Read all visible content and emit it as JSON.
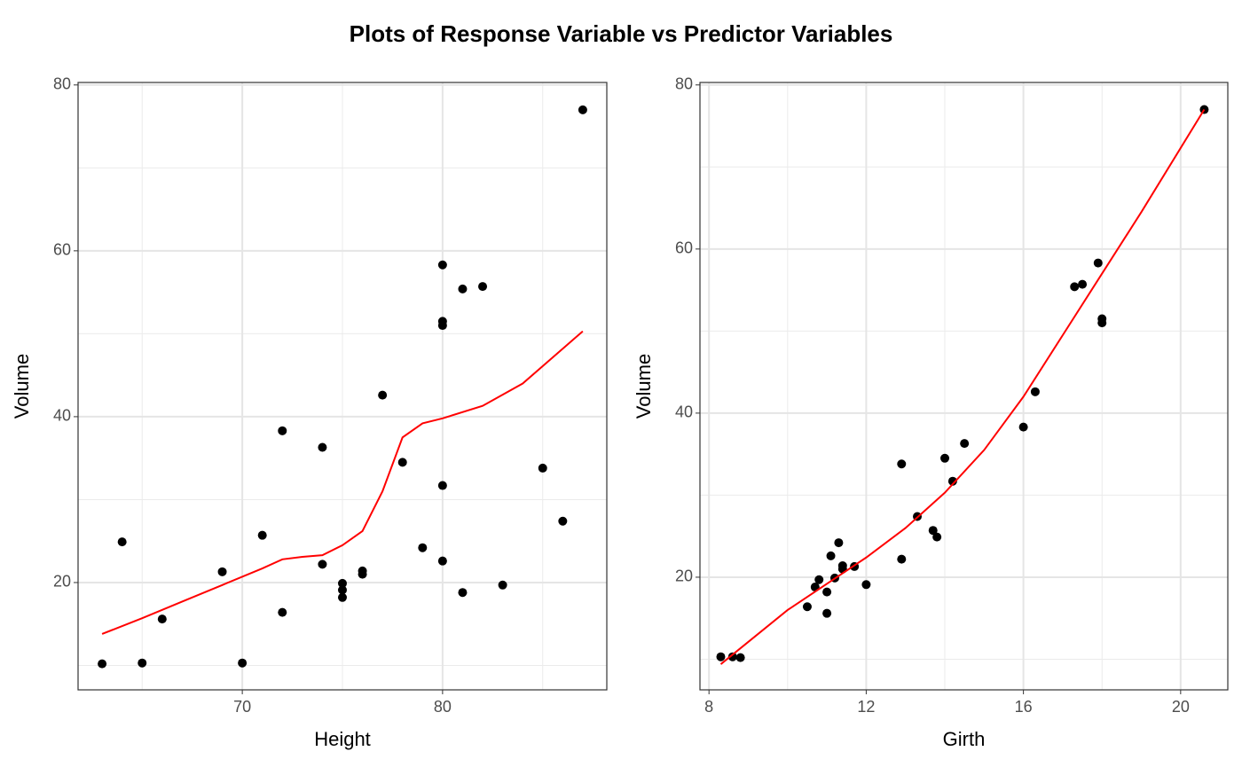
{
  "title": "Plots of Response Variable vs Predictor Variables",
  "chart_data": [
    {
      "type": "scatter",
      "xlabel": "Height",
      "ylabel": "Volume",
      "x": [
        70,
        65,
        63,
        72,
        81,
        83,
        66,
        75,
        80,
        75,
        79,
        76,
        76,
        69,
        75,
        74,
        85,
        86,
        71,
        64,
        78,
        80,
        74,
        72,
        77,
        81,
        82,
        80,
        80,
        80,
        87
      ],
      "values": [
        10.3,
        10.3,
        10.2,
        16.4,
        18.8,
        19.7,
        15.6,
        18.2,
        22.6,
        19.9,
        24.2,
        21.0,
        21.4,
        21.3,
        19.1,
        22.2,
        33.8,
        27.4,
        25.7,
        24.9,
        34.5,
        31.7,
        36.3,
        38.3,
        42.6,
        55.4,
        55.7,
        58.3,
        51.5,
        51.0,
        77.0
      ],
      "color": "#000000",
      "smooth": {
        "color": "#ff0000",
        "x": [
          63,
          65,
          67,
          69,
          71,
          72,
          73,
          74,
          75,
          76,
          77,
          78,
          79,
          80,
          82,
          84,
          86,
          87
        ],
        "values": [
          13.8,
          15.7,
          17.7,
          19.7,
          21.7,
          22.8,
          23.1,
          23.3,
          24.5,
          26.2,
          31,
          37.5,
          39.2,
          39.8,
          41.3,
          44,
          48.2,
          50.3
        ]
      },
      "xlim": [
        61.8,
        88.2
      ],
      "ylim": [
        7.06,
        80.3
      ],
      "xticks": [
        70,
        80
      ],
      "yticks": [
        20,
        40,
        60,
        80
      ],
      "minor_xticks": [
        65,
        75,
        85
      ],
      "minor_yticks": [
        10,
        30,
        50,
        70
      ],
      "grid": true
    },
    {
      "type": "scatter",
      "xlabel": "Girth",
      "ylabel": "Volume",
      "x": [
        8.3,
        8.6,
        8.8,
        10.5,
        10.7,
        10.8,
        11.0,
        11.0,
        11.1,
        11.2,
        11.3,
        11.4,
        11.4,
        11.7,
        12.0,
        12.9,
        12.9,
        13.3,
        13.7,
        13.8,
        14.0,
        14.2,
        14.5,
        16.0,
        16.3,
        17.3,
        17.5,
        17.9,
        18.0,
        18.0,
        20.6
      ],
      "values": [
        10.3,
        10.3,
        10.2,
        16.4,
        18.8,
        19.7,
        15.6,
        18.2,
        22.6,
        19.9,
        24.2,
        21.0,
        21.4,
        21.3,
        19.1,
        22.2,
        33.8,
        27.4,
        25.7,
        24.9,
        34.5,
        31.7,
        36.3,
        38.3,
        42.6,
        55.4,
        55.7,
        58.3,
        51.5,
        51.0,
        77.0
      ],
      "color": "#000000",
      "smooth": {
        "color": "#ff0000",
        "x": [
          8.3,
          10,
          12,
          13,
          14,
          15,
          16,
          17,
          18,
          19,
          20.6
        ],
        "values": [
          9.4,
          16,
          22.4,
          26,
          30.3,
          35.5,
          42,
          49.5,
          57,
          64.5,
          77
        ]
      },
      "xlim": [
        7.77,
        21.2
      ],
      "ylim": [
        6.27,
        80.3
      ],
      "xticks": [
        8,
        12,
        16,
        20
      ],
      "yticks": [
        20,
        40,
        60,
        80
      ],
      "minor_xticks": [
        10,
        14,
        18
      ],
      "minor_yticks": [
        10,
        30,
        50,
        70
      ],
      "grid": true
    }
  ]
}
